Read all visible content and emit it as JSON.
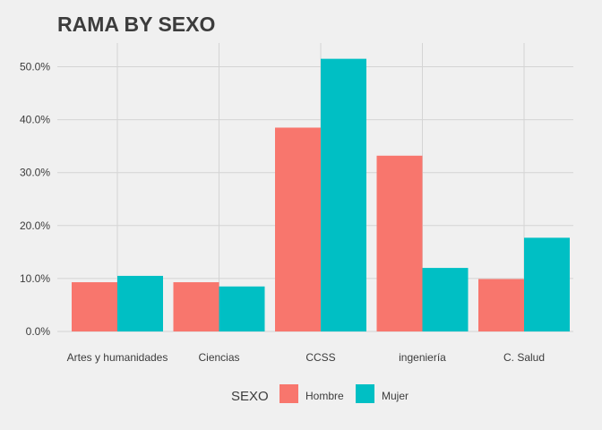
{
  "chart_data": {
    "type": "bar",
    "title": "RAMA BY SEXO",
    "categories": [
      "Artes y humanidades",
      "Ciencias",
      "CCSS",
      "ingeniería",
      "C. Salud"
    ],
    "series": [
      {
        "name": "Hombre",
        "color": "#f8766d",
        "values": [
          9.3,
          9.3,
          38.5,
          33.2,
          9.9
        ]
      },
      {
        "name": "Mujer",
        "color": "#00bfc4",
        "values": [
          10.5,
          8.5,
          51.5,
          12.0,
          17.7
        ]
      }
    ],
    "yticks": [
      "0.0%",
      "10.0%",
      "20.0%",
      "30.0%",
      "40.0%",
      "50.0%"
    ],
    "ylim": [
      0,
      52.5
    ],
    "legend": {
      "title": "SEXO",
      "position": "bottom"
    },
    "grid": true
  }
}
